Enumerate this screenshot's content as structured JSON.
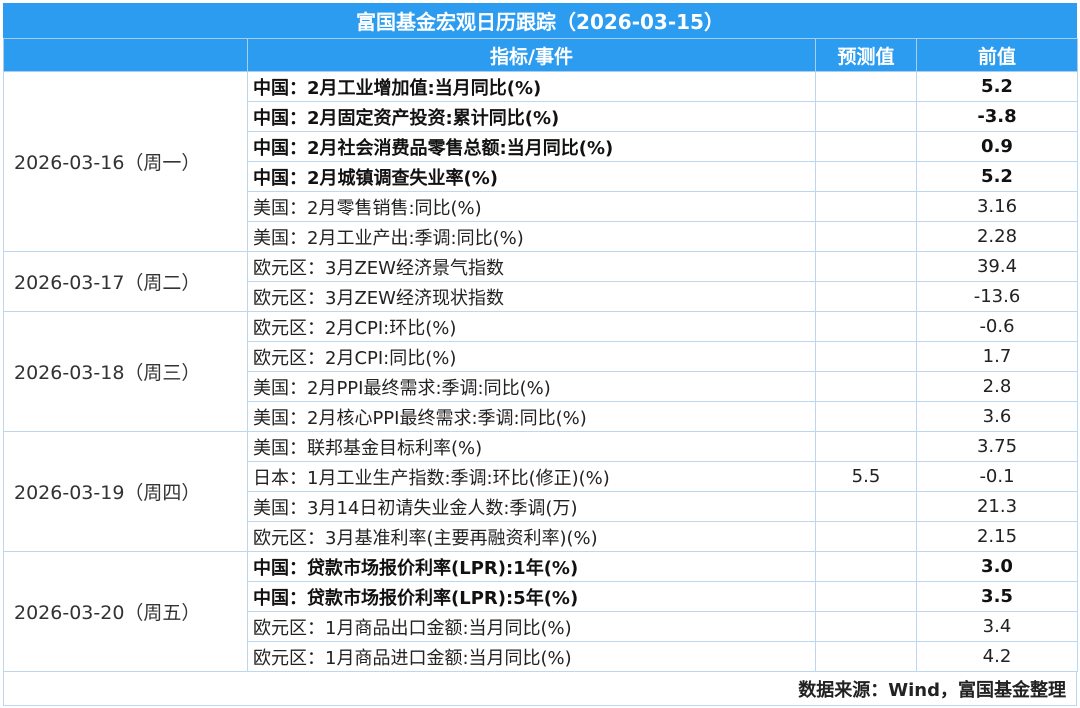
{
  "title": "富国基金宏观日历跟踪（2026-03-15）",
  "headers": {
    "date": "",
    "indicator": "指标/事件",
    "forecast": "预测值",
    "previous": "前值"
  },
  "days": [
    {
      "date": "2026-03-16（周一）",
      "rows": [
        {
          "indicator": "中国：2月工业增加值:当月同比(%)",
          "forecast": "",
          "previous": "5.2",
          "bold": true
        },
        {
          "indicator": "中国：2月固定资产投资:累计同比(%)",
          "forecast": "",
          "previous": "-3.8",
          "bold": true
        },
        {
          "indicator": "中国：2月社会消费品零售总额:当月同比(%)",
          "forecast": "",
          "previous": "0.9",
          "bold": true
        },
        {
          "indicator": "中国：2月城镇调查失业率(%)",
          "forecast": "",
          "previous": "5.2",
          "bold": true
        },
        {
          "indicator": "美国：2月零售销售:同比(%)",
          "forecast": "",
          "previous": "3.16",
          "bold": false
        },
        {
          "indicator": "美国：2月工业产出:季调:同比(%)",
          "forecast": "",
          "previous": "2.28",
          "bold": false
        }
      ]
    },
    {
      "date": "2026-03-17（周二）",
      "rows": [
        {
          "indicator": "欧元区：3月ZEW经济景气指数",
          "forecast": "",
          "previous": "39.4",
          "bold": false
        },
        {
          "indicator": "欧元区：3月ZEW经济现状指数",
          "forecast": "",
          "previous": "-13.6",
          "bold": false
        }
      ]
    },
    {
      "date": "2026-03-18（周三）",
      "rows": [
        {
          "indicator": "欧元区：2月CPI:环比(%)",
          "forecast": "",
          "previous": "-0.6",
          "bold": false
        },
        {
          "indicator": "欧元区：2月CPI:同比(%)",
          "forecast": "",
          "previous": "1.7",
          "bold": false
        },
        {
          "indicator": "美国：2月PPI最终需求:季调:同比(%)",
          "forecast": "",
          "previous": "2.8",
          "bold": false
        },
        {
          "indicator": "美国：2月核心PPI最终需求:季调:同比(%)",
          "forecast": "",
          "previous": "3.6",
          "bold": false
        }
      ]
    },
    {
      "date": "2026-03-19（周四）",
      "rows": [
        {
          "indicator": "美国：联邦基金目标利率(%)",
          "forecast": "",
          "previous": "3.75",
          "bold": false
        },
        {
          "indicator": "日本：1月工业生产指数:季调:环比(修正)(%)",
          "forecast": "5.5",
          "previous": "-0.1",
          "bold": false
        },
        {
          "indicator": "美国：3月14日初请失业金人数:季调(万)",
          "forecast": "",
          "previous": "21.3",
          "bold": false
        },
        {
          "indicator": "欧元区：3月基准利率(主要再融资利率)(%)",
          "forecast": "",
          "previous": "2.15",
          "bold": false
        }
      ]
    },
    {
      "date": "2026-03-20（周五）",
      "rows": [
        {
          "indicator": "中国：贷款市场报价利率(LPR):1年(%)",
          "forecast": "",
          "previous": "3.0",
          "bold": true
        },
        {
          "indicator": "中国：贷款市场报价利率(LPR):5年(%)",
          "forecast": "",
          "previous": "3.5",
          "bold": true
        },
        {
          "indicator": "欧元区：1月商品出口金额:当月同比(%)",
          "forecast": "",
          "previous": "3.4",
          "bold": false
        },
        {
          "indicator": "欧元区：1月商品进口金额:当月同比(%)",
          "forecast": "",
          "previous": "4.2",
          "bold": false
        }
      ]
    }
  ],
  "footer": "数据来源：Wind，富国基金整理",
  "colors": {
    "header_bg": "#2c9cf0",
    "header_text": "#ffffff",
    "border": "#bcd7ee"
  }
}
